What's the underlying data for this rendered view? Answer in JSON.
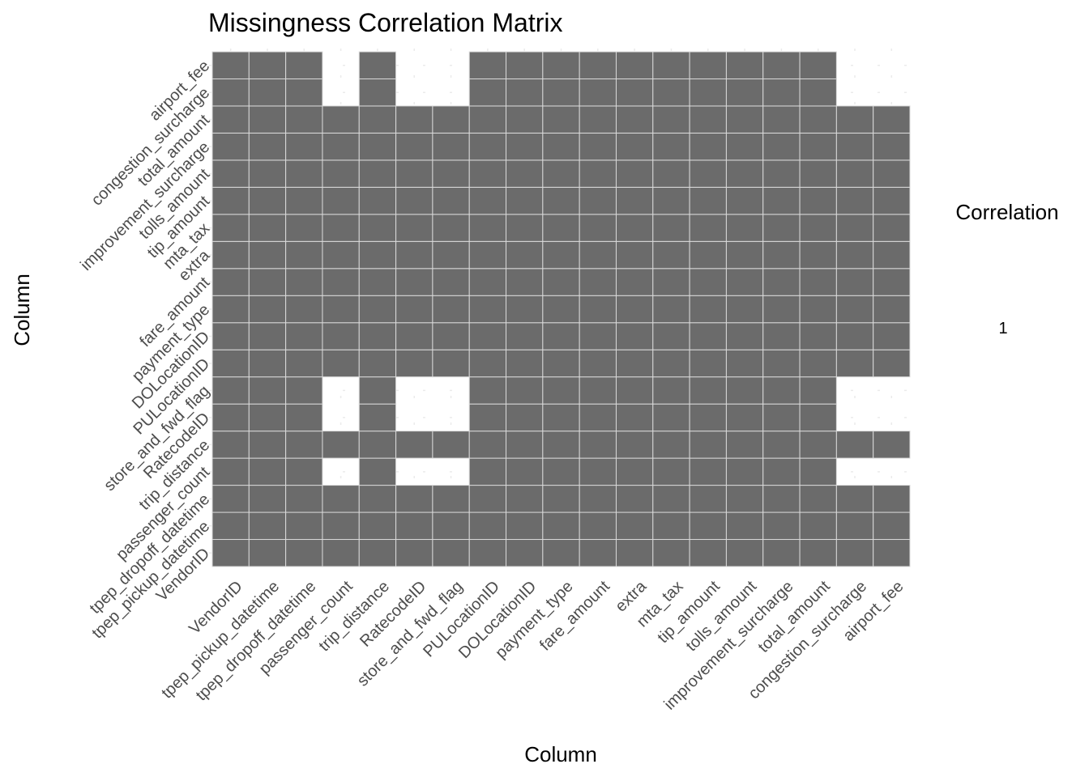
{
  "chart_data": {
    "type": "heatmap",
    "title": "Missingness Correlation Matrix",
    "xlabel": "Column",
    "ylabel": "Column",
    "legend": {
      "title": "Correlation",
      "labels": [
        "1"
      ],
      "position": "right"
    },
    "grid": true,
    "colors": {
      "filled": "#6b6b6b",
      "empty": "#ffffff",
      "cell_border": "#d9d9d9",
      "text": "#4d4d4d",
      "title_text": "#000000"
    },
    "columns": [
      "VendorID",
      "tpep_pickup_datetime",
      "tpep_dropoff_datetime",
      "passenger_count",
      "trip_distance",
      "RatecodeID",
      "store_and_fwd_flag",
      "PULocationID",
      "DOLocationID",
      "payment_type",
      "fare_amount",
      "extra",
      "mta_tax",
      "tip_amount",
      "tolls_amount",
      "improvement_surcharge",
      "total_amount",
      "congestion_surcharge",
      "airport_fee"
    ],
    "rows": [
      "VendorID",
      "tpep_pickup_datetime",
      "tpep_dropoff_datetime",
      "passenger_count",
      "trip_distance",
      "RatecodeID",
      "store_and_fwd_flag",
      "PULocationID",
      "DOLocationID",
      "payment_type",
      "fare_amount",
      "extra",
      "mta_tax",
      "tip_amount",
      "tolls_amount",
      "improvement_surcharge",
      "total_amount",
      "congestion_surcharge",
      "airport_fee"
    ],
    "row_order": "bottom-to-top",
    "values": [
      [
        1,
        1,
        1,
        1,
        1,
        1,
        1,
        1,
        1,
        1,
        1,
        1,
        1,
        1,
        1,
        1,
        1,
        1,
        1
      ],
      [
        1,
        1,
        1,
        1,
        1,
        1,
        1,
        1,
        1,
        1,
        1,
        1,
        1,
        1,
        1,
        1,
        1,
        1,
        1
      ],
      [
        1,
        1,
        1,
        1,
        1,
        1,
        1,
        1,
        1,
        1,
        1,
        1,
        1,
        1,
        1,
        1,
        1,
        1,
        1
      ],
      [
        1,
        1,
        1,
        null,
        1,
        null,
        null,
        1,
        1,
        1,
        1,
        1,
        1,
        1,
        1,
        1,
        1,
        null,
        null
      ],
      [
        1,
        1,
        1,
        1,
        1,
        1,
        1,
        1,
        1,
        1,
        1,
        1,
        1,
        1,
        1,
        1,
        1,
        1,
        1
      ],
      [
        1,
        1,
        1,
        null,
        1,
        null,
        null,
        1,
        1,
        1,
        1,
        1,
        1,
        1,
        1,
        1,
        1,
        null,
        null
      ],
      [
        1,
        1,
        1,
        null,
        1,
        null,
        null,
        1,
        1,
        1,
        1,
        1,
        1,
        1,
        1,
        1,
        1,
        null,
        null
      ],
      [
        1,
        1,
        1,
        1,
        1,
        1,
        1,
        1,
        1,
        1,
        1,
        1,
        1,
        1,
        1,
        1,
        1,
        1,
        1
      ],
      [
        1,
        1,
        1,
        1,
        1,
        1,
        1,
        1,
        1,
        1,
        1,
        1,
        1,
        1,
        1,
        1,
        1,
        1,
        1
      ],
      [
        1,
        1,
        1,
        1,
        1,
        1,
        1,
        1,
        1,
        1,
        1,
        1,
        1,
        1,
        1,
        1,
        1,
        1,
        1
      ],
      [
        1,
        1,
        1,
        1,
        1,
        1,
        1,
        1,
        1,
        1,
        1,
        1,
        1,
        1,
        1,
        1,
        1,
        1,
        1
      ],
      [
        1,
        1,
        1,
        1,
        1,
        1,
        1,
        1,
        1,
        1,
        1,
        1,
        1,
        1,
        1,
        1,
        1,
        1,
        1
      ],
      [
        1,
        1,
        1,
        1,
        1,
        1,
        1,
        1,
        1,
        1,
        1,
        1,
        1,
        1,
        1,
        1,
        1,
        1,
        1
      ],
      [
        1,
        1,
        1,
        1,
        1,
        1,
        1,
        1,
        1,
        1,
        1,
        1,
        1,
        1,
        1,
        1,
        1,
        1,
        1
      ],
      [
        1,
        1,
        1,
        1,
        1,
        1,
        1,
        1,
        1,
        1,
        1,
        1,
        1,
        1,
        1,
        1,
        1,
        1,
        1
      ],
      [
        1,
        1,
        1,
        1,
        1,
        1,
        1,
        1,
        1,
        1,
        1,
        1,
        1,
        1,
        1,
        1,
        1,
        1,
        1
      ],
      [
        1,
        1,
        1,
        1,
        1,
        1,
        1,
        1,
        1,
        1,
        1,
        1,
        1,
        1,
        1,
        1,
        1,
        1,
        1
      ],
      [
        1,
        1,
        1,
        null,
        1,
        null,
        null,
        1,
        1,
        1,
        1,
        1,
        1,
        1,
        1,
        1,
        1,
        null,
        null
      ],
      [
        1,
        1,
        1,
        null,
        1,
        null,
        null,
        1,
        1,
        1,
        1,
        1,
        1,
        1,
        1,
        1,
        1,
        null,
        null
      ]
    ]
  }
}
